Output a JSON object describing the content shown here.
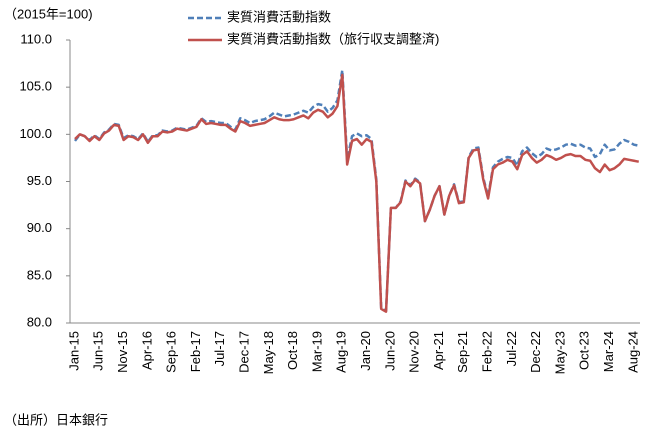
{
  "chart_data": {
    "type": "line",
    "unit_label": "（2015年=100)",
    "source": "（出所）日本銀行",
    "categories": [
      "Jan-15",
      null,
      null,
      null,
      null,
      "Jun-15",
      null,
      null,
      null,
      null,
      "Nov-15",
      null,
      null,
      null,
      null,
      "Apr-16",
      null,
      null,
      null,
      null,
      "Sep-16",
      null,
      null,
      null,
      null,
      "Feb-17",
      null,
      null,
      null,
      null,
      "Jul-17",
      null,
      null,
      null,
      null,
      "Dec-17",
      null,
      null,
      null,
      null,
      "May-18",
      null,
      null,
      null,
      null,
      "Oct-18",
      null,
      null,
      null,
      null,
      "Mar-19",
      null,
      null,
      null,
      null,
      "Aug-19",
      null,
      null,
      null,
      null,
      "Jan-20",
      null,
      null,
      null,
      null,
      "Jun-20",
      null,
      null,
      null,
      null,
      "Nov-20",
      null,
      null,
      null,
      null,
      "Apr-21",
      null,
      null,
      null,
      null,
      "Sep-21",
      null,
      null,
      null,
      null,
      "Feb-22",
      null,
      null,
      null,
      null,
      "Jul-22",
      null,
      null,
      null,
      null,
      "Dec-22",
      null,
      null,
      null,
      null,
      "May-23",
      null,
      null,
      null,
      null,
      "Oct-23",
      null,
      null,
      null,
      null,
      "Mar-24",
      null,
      null,
      null,
      null,
      "Aug-24",
      null
    ],
    "series": [
      {
        "name": "実質消費活動指数",
        "color": "#4f7fb8",
        "dashed": true,
        "values": [
          99.3,
          100.0,
          99.8,
          99.4,
          99.9,
          99.5,
          100.2,
          100.5,
          101.1,
          101.0,
          99.6,
          99.9,
          99.8,
          99.5,
          100.1,
          99.2,
          99.9,
          99.9,
          100.4,
          100.3,
          100.4,
          100.7,
          100.6,
          100.5,
          100.7,
          100.9,
          101.7,
          101.3,
          101.4,
          101.3,
          101.2,
          101.2,
          100.8,
          100.5,
          101.7,
          101.5,
          101.2,
          101.4,
          101.5,
          101.6,
          101.9,
          102.3,
          102.1,
          101.9,
          102.0,
          102.1,
          102.3,
          102.5,
          102.3,
          102.9,
          103.2,
          103.1,
          102.4,
          102.8,
          103.6,
          106.8,
          97.3,
          99.8,
          100.1,
          99.8,
          99.9,
          99.5,
          95.2,
          81.6,
          81.3,
          92.2,
          92.2,
          92.9,
          95.1,
          94.6,
          95.3,
          94.9,
          90.8,
          92.0,
          93.5,
          94.5,
          91.5,
          93.5,
          94.7,
          92.8,
          92.9,
          97.6,
          98.5,
          98.6,
          95.4,
          93.4,
          96.5,
          97.1,
          97.4,
          97.6,
          97.5,
          96.7,
          98.2,
          98.6,
          98.0,
          97.6,
          97.9,
          98.5,
          98.3,
          98.4,
          98.6,
          98.9,
          99.0,
          98.8,
          98.9,
          98.6,
          98.5,
          97.6,
          97.9,
          98.9,
          98.3,
          98.4,
          99.0,
          99.4,
          99.2,
          98.9,
          98.8
        ]
      },
      {
        "name": "実質消費活動指数（旅行収支調整済)",
        "color": "#c0504d",
        "dashed": false,
        "values": [
          99.5,
          100.0,
          99.8,
          99.3,
          99.8,
          99.4,
          100.1,
          100.4,
          101.0,
          100.9,
          99.4,
          99.8,
          99.7,
          99.4,
          100.0,
          99.1,
          99.8,
          99.8,
          100.3,
          100.2,
          100.3,
          100.6,
          100.5,
          100.4,
          100.6,
          100.8,
          101.6,
          101.1,
          101.2,
          101.1,
          101.0,
          101.0,
          100.6,
          100.3,
          101.4,
          101.2,
          100.9,
          101.0,
          101.1,
          101.2,
          101.5,
          101.8,
          101.6,
          101.5,
          101.5,
          101.6,
          101.8,
          102.0,
          101.7,
          102.3,
          102.6,
          102.4,
          101.8,
          102.2,
          103.0,
          106.3,
          96.8,
          99.3,
          99.5,
          98.9,
          99.5,
          99.2,
          95.0,
          81.5,
          81.2,
          92.2,
          92.2,
          92.8,
          95.0,
          94.5,
          95.2,
          94.8,
          90.8,
          92.0,
          93.5,
          94.5,
          91.5,
          93.5,
          94.6,
          92.7,
          92.8,
          97.5,
          98.3,
          98.4,
          95.2,
          93.2,
          96.3,
          96.8,
          97.0,
          97.3,
          97.1,
          96.3,
          97.8,
          98.2,
          97.5,
          97.0,
          97.3,
          97.8,
          97.6,
          97.3,
          97.5,
          97.8,
          97.9,
          97.7,
          97.7,
          97.3,
          97.2,
          96.4,
          96.0,
          96.8,
          96.2,
          96.4,
          96.8,
          97.4,
          97.3,
          97.2,
          97.1
        ]
      }
    ],
    "ylim": [
      80,
      110
    ],
    "yticks": [
      {
        "value": 80,
        "label": "80.0"
      },
      {
        "value": 85,
        "label": "85.0"
      },
      {
        "value": 90,
        "label": "90.0"
      },
      {
        "value": 95,
        "label": "95.0"
      },
      {
        "value": 100,
        "label": "100.0"
      },
      {
        "value": 105,
        "label": "105.0"
      },
      {
        "value": 110,
        "label": "110.0"
      }
    ],
    "grid": false
  }
}
